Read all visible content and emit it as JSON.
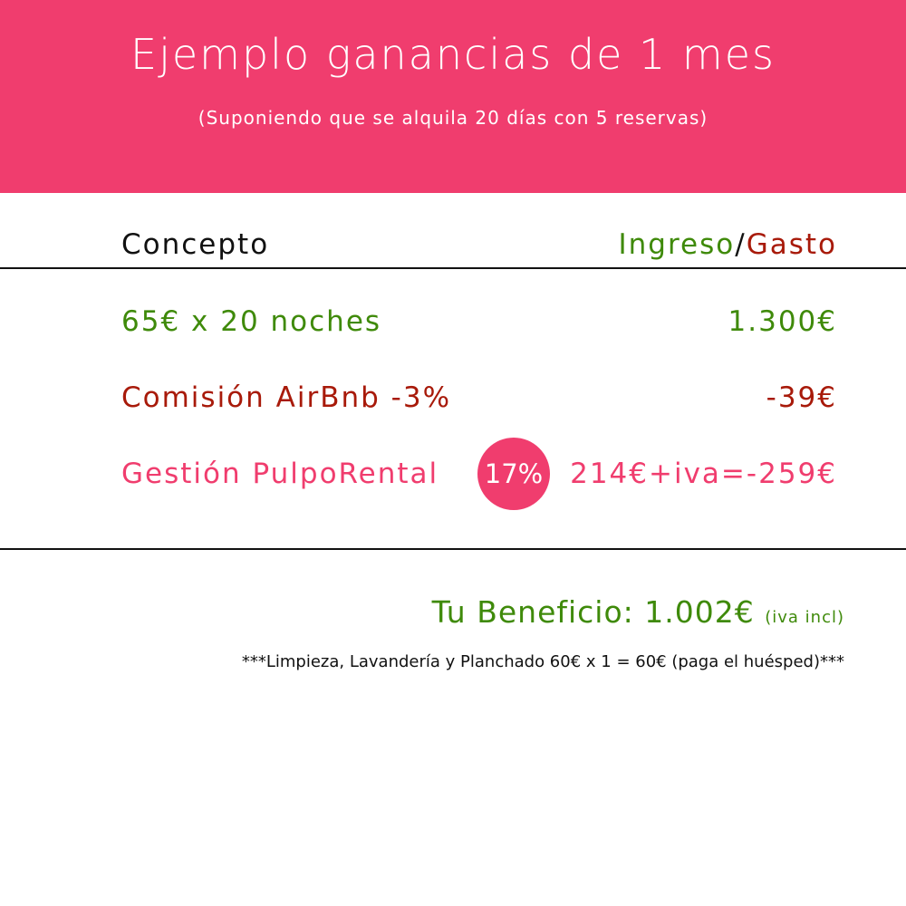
{
  "colors": {
    "header_bg": "#f03d6e",
    "income": "#3f8a0a",
    "expense": "#a81a0a",
    "brand": "#f03d6e"
  },
  "header": {
    "title": "Ejemplo ganancias de 1 mes",
    "subtitle": "(Suponiendo que se alquila 20 días con 5 reservas)"
  },
  "table": {
    "col_concept": "Concepto",
    "col_income": "Ingreso",
    "col_sep": "/",
    "col_expense": "Gasto",
    "rows": [
      {
        "concept": "65€ x 20 noches",
        "amount": "1.300€"
      },
      {
        "concept": "Comisión AirBnb -3%",
        "amount": "-39€"
      },
      {
        "concept": "Gestión PulpoRental",
        "badge": "17%",
        "amount": "214€+iva=-259€"
      }
    ]
  },
  "summary": {
    "benefit": "Tu Beneficio: 1.002€",
    "benefit_note": "(iva incl)",
    "footnote": "***Limpieza, Lavandería y Planchado 60€ x 1 = 60€ (paga el huésped)***"
  }
}
